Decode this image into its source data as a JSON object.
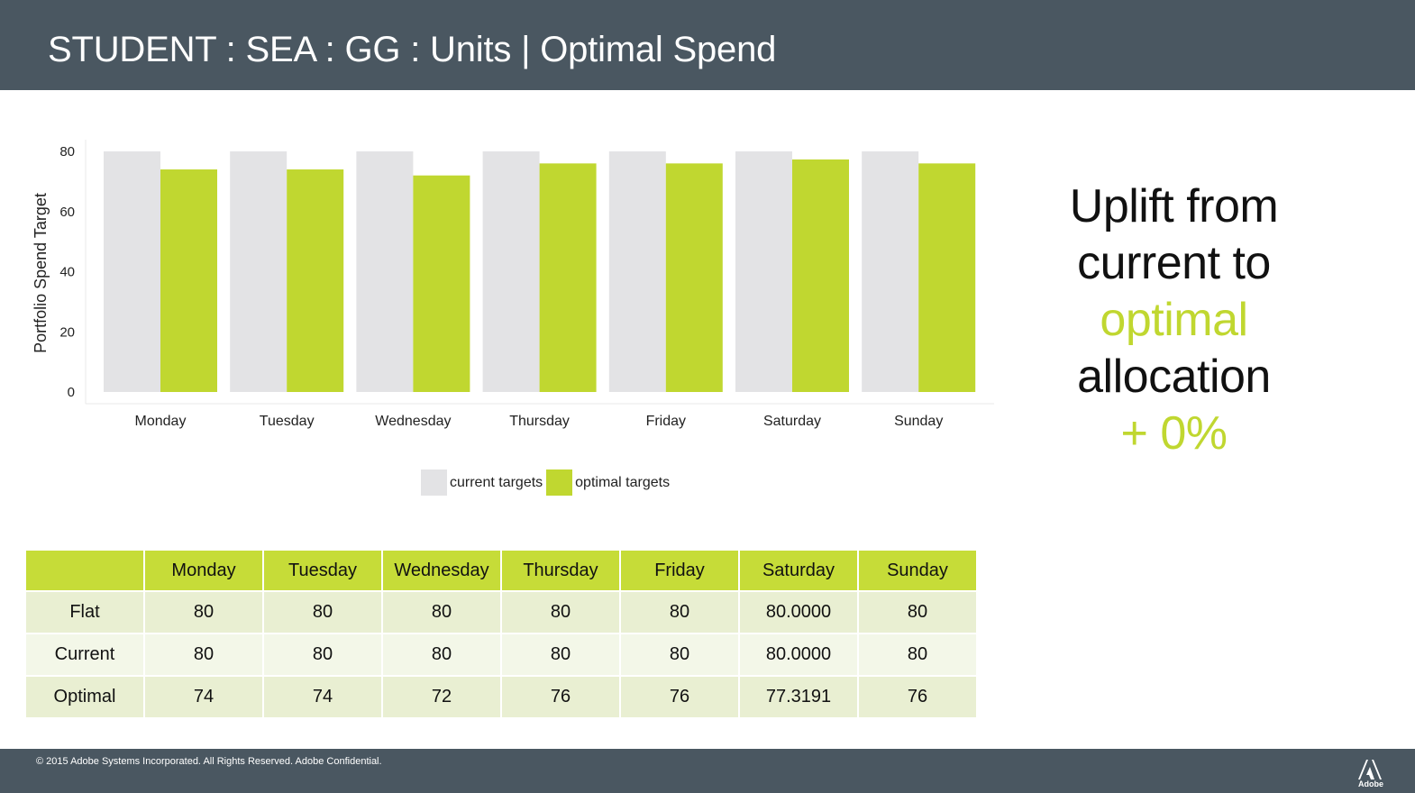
{
  "header": {
    "title": "STUDENT : SEA : GG : Units | Optimal Spend"
  },
  "chart_data": {
    "type": "bar",
    "ylabel": "Portfolio Spend Target",
    "xlabel": "",
    "ylim": [
      0,
      84
    ],
    "yticks": [
      0,
      20,
      40,
      60,
      80
    ],
    "categories": [
      "Monday",
      "Tuesday",
      "Wednesday",
      "Thursday",
      "Friday",
      "Saturday",
      "Sunday"
    ],
    "series": [
      {
        "name": "current targets",
        "values": [
          80,
          80,
          80,
          80,
          80,
          80,
          80
        ],
        "color": "#e3e3e5"
      },
      {
        "name": "optimal targets",
        "values": [
          74,
          74,
          72,
          76,
          76,
          77.3191,
          76
        ],
        "color": "#c0d730"
      }
    ],
    "legend_position": "bottom",
    "grid": false
  },
  "callout": {
    "line1": "Uplift from",
    "line2": "current to",
    "line3": "optimal",
    "line4": "allocation",
    "line5": "+  0%"
  },
  "table": {
    "headers": [
      "",
      "Monday",
      "Tuesday",
      "Wednesday",
      "Thursday",
      "Friday",
      "Saturday",
      "Sunday"
    ],
    "rows": [
      [
        "Flat",
        "80",
        "80",
        "80",
        "80",
        "80",
        "80.0000",
        "80"
      ],
      [
        "Current",
        "80",
        "80",
        "80",
        "80",
        "80",
        "80.0000",
        "80"
      ],
      [
        "Optimal",
        "74",
        "74",
        "72",
        "76",
        "76",
        "77.3191",
        "76"
      ]
    ]
  },
  "footer": {
    "text": "© 2015 Adobe Systems Incorporated.  All Rights Reserved.  Adobe Confidential.",
    "logo_text": "Adobe"
  }
}
